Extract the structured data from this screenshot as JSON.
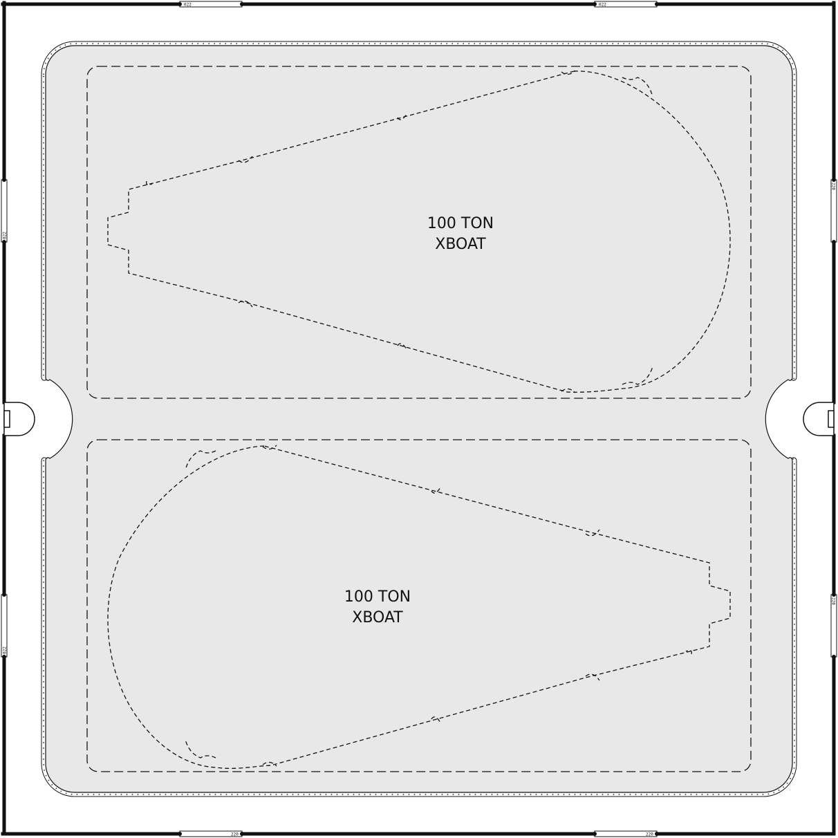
{
  "bays": [
    {
      "label_line1": "100 TON",
      "label_line2": "XBOAT"
    },
    {
      "label_line1": "100 TON",
      "label_line2": "XBOAT"
    }
  ],
  "door_codes": {
    "top_left": "022",
    "top_right": "022",
    "left_upper": "022",
    "left_lower": "022",
    "right_upper": "220",
    "right_lower": "220",
    "bottom_left": "220",
    "bottom_right": "220"
  },
  "colors": {
    "deck": "#e8e8e8",
    "line": "#111111",
    "background": "#ffffff"
  }
}
